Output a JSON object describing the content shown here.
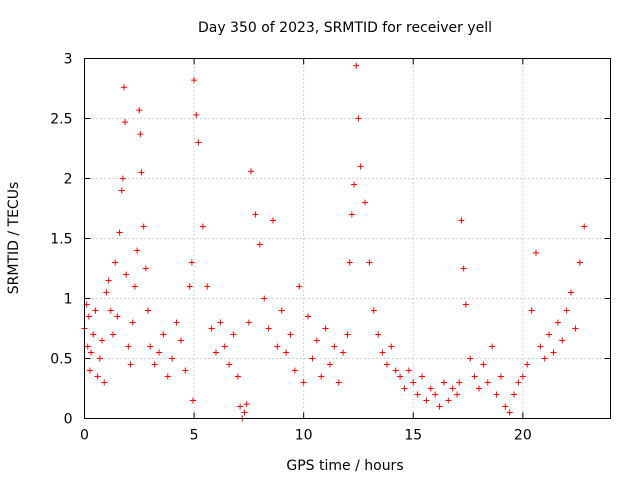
{
  "chart_data": {
    "type": "scatter",
    "title": "Day 350 of 2023, SRMTID for receiver yell",
    "xlabel": "GPS time / hours",
    "ylabel": "SRMTID / TECUs",
    "xlim": [
      0,
      24
    ],
    "ylim": [
      0,
      3
    ],
    "xticks": [
      0,
      5,
      10,
      15,
      20
    ],
    "xtick_labels": [
      "0",
      "5",
      "10",
      "15",
      "20"
    ],
    "yticks": [
      0,
      0.5,
      1,
      1.5,
      2,
      2.5,
      3
    ],
    "ytick_labels": [
      "0",
      "0.5",
      "1",
      "1.5",
      "2",
      "2.5",
      "3"
    ],
    "grid": true,
    "marker": "+",
    "color": "#ff0000",
    "series": [
      {
        "name": "SRMTID",
        "x": [
          0.0,
          0.1,
          0.15,
          0.2,
          0.25,
          0.3,
          0.4,
          0.5,
          0.6,
          0.7,
          0.8,
          0.9,
          1.0,
          1.1,
          1.2,
          1.3,
          1.4,
          1.5,
          1.6,
          1.7,
          1.75,
          1.8,
          1.85,
          1.9,
          2.0,
          2.1,
          2.2,
          2.3,
          2.4,
          2.5,
          2.55,
          2.6,
          2.7,
          2.8,
          2.9,
          3.0,
          3.2,
          3.4,
          3.6,
          3.8,
          4.0,
          4.2,
          4.4,
          4.6,
          4.8,
          4.9,
          4.95,
          5.0,
          5.1,
          5.2,
          5.4,
          5.6,
          5.8,
          6.0,
          6.2,
          6.4,
          6.6,
          6.8,
          7.0,
          7.1,
          7.2,
          7.3,
          7.4,
          7.5,
          7.6,
          7.8,
          8.0,
          8.2,
          8.4,
          8.6,
          8.8,
          9.0,
          9.2,
          9.4,
          9.6,
          9.8,
          10.0,
          10.2,
          10.4,
          10.6,
          10.8,
          11.0,
          11.2,
          11.4,
          11.6,
          11.8,
          12.0,
          12.1,
          12.2,
          12.3,
          12.4,
          12.5,
          12.6,
          12.8,
          13.0,
          13.2,
          13.4,
          13.6,
          13.8,
          14.0,
          14.2,
          14.4,
          14.6,
          14.8,
          15.0,
          15.2,
          15.4,
          15.6,
          15.8,
          16.0,
          16.2,
          16.4,
          16.6,
          16.8,
          17.0,
          17.1,
          17.2,
          17.3,
          17.4,
          17.6,
          17.8,
          18.0,
          18.2,
          18.4,
          18.6,
          18.8,
          19.0,
          19.2,
          19.4,
          19.6,
          19.8,
          20.0,
          20.2,
          20.4,
          20.6,
          20.8,
          21.0,
          21.2,
          21.4,
          21.6,
          21.8,
          22.0,
          22.2,
          22.4,
          22.6,
          22.8
        ],
        "y": [
          0.75,
          0.95,
          0.6,
          0.85,
          0.4,
          0.55,
          0.7,
          0.9,
          0.35,
          0.5,
          0.65,
          0.3,
          1.05,
          1.15,
          0.9,
          0.7,
          1.3,
          0.85,
          1.55,
          1.9,
          2.0,
          2.76,
          2.47,
          1.2,
          0.6,
          0.45,
          0.8,
          1.1,
          1.4,
          2.57,
          2.37,
          2.05,
          1.6,
          1.25,
          0.9,
          0.6,
          0.45,
          0.55,
          0.7,
          0.35,
          0.5,
          0.8,
          0.65,
          0.4,
          1.1,
          1.3,
          0.15,
          2.82,
          2.53,
          2.3,
          1.6,
          1.1,
          0.75,
          0.55,
          0.8,
          0.6,
          0.45,
          0.7,
          0.35,
          0.1,
          0.0,
          0.05,
          0.12,
          0.8,
          2.06,
          1.7,
          1.45,
          1.0,
          0.75,
          1.65,
          0.6,
          0.9,
          0.55,
          0.7,
          0.4,
          1.1,
          0.3,
          0.85,
          0.5,
          0.65,
          0.35,
          0.75,
          0.45,
          0.6,
          0.3,
          0.55,
          0.7,
          1.3,
          1.7,
          1.95,
          2.94,
          2.5,
          2.1,
          1.8,
          1.3,
          0.9,
          0.7,
          0.55,
          0.45,
          0.6,
          0.4,
          0.35,
          0.25,
          0.4,
          0.3,
          0.2,
          0.35,
          0.15,
          0.25,
          0.2,
          0.1,
          0.3,
          0.15,
          0.25,
          0.2,
          0.3,
          1.65,
          1.25,
          0.95,
          0.5,
          0.35,
          0.25,
          0.45,
          0.3,
          0.6,
          0.2,
          0.35,
          0.1,
          0.05,
          0.2,
          0.3,
          0.35,
          0.45,
          0.9,
          1.38,
          0.6,
          0.5,
          0.7,
          0.55,
          0.8,
          0.65,
          0.9,
          1.05,
          0.75,
          1.3,
          1.6
        ]
      }
    ]
  }
}
